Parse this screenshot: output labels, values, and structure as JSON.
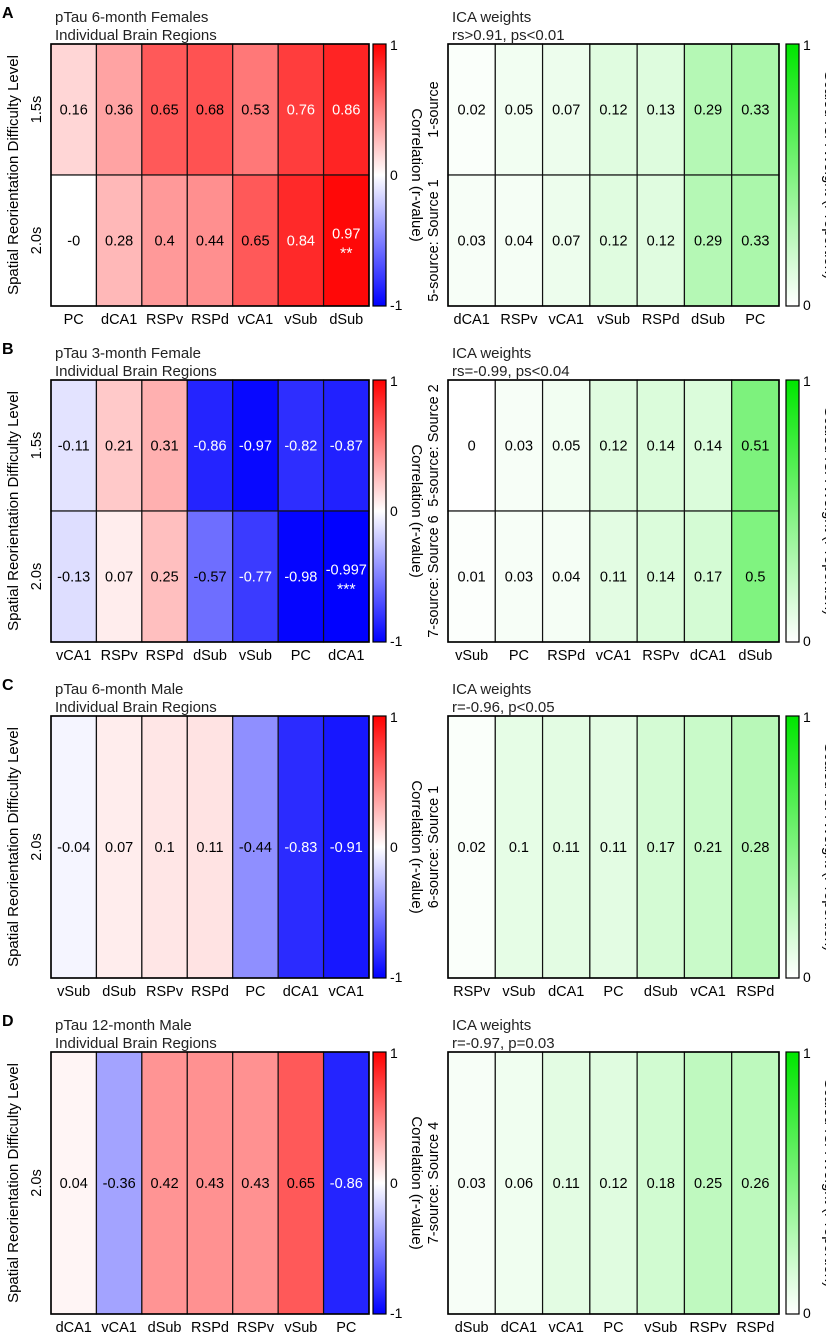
{
  "chart_data": [
    {
      "panel": "A",
      "type": "heatmap",
      "title": "pTau 6-month Females",
      "subtitle": "Individual Brain Regions",
      "ylabel": "Spatial Reorientation Difficulty Level",
      "rows": [
        "1.5s",
        "2.0s"
      ],
      "categories": [
        "PC",
        "dCA1",
        "RSPv",
        "RSPd",
        "vCA1",
        "vSub",
        "dSub"
      ],
      "values": [
        [
          0.16,
          0.36,
          0.65,
          0.68,
          0.53,
          0.76,
          0.86
        ],
        [
          -0.0,
          0.28,
          0.4,
          0.44,
          0.65,
          0.84,
          0.97
        ]
      ],
      "labels": [
        [
          "0.16",
          "0.36",
          "0.65",
          "0.68",
          "0.53",
          "0.76",
          "0.86"
        ],
        [
          "-0",
          "0.28",
          "0.4",
          "0.44",
          "0.65",
          "0.84",
          "0.97"
        ]
      ],
      "stars": [
        [
          "",
          "",
          "",
          "",
          "",
          "",
          ""
        ],
        [
          "",
          "",
          "",
          "",
          "",
          "",
          "**"
        ]
      ],
      "colorbar": {
        "label": "Correlation (r-value)",
        "max_label": "1",
        "mid_label": "0",
        "min_label": "-1",
        "range": [
          -1,
          1
        ]
      }
    },
    {
      "panel": "A",
      "type": "heatmap",
      "title": "ICA weights",
      "subtitle": "rs>0.91, ps<0.01",
      "rows": [
        "1-source",
        "5-source: Source 1"
      ],
      "categories": [
        "dCA1",
        "RSPv",
        "vCA1",
        "vSub",
        "RSPd",
        "dSub",
        "PC"
      ],
      "values": [
        [
          0.02,
          0.05,
          0.07,
          0.12,
          0.13,
          0.29,
          0.33
        ],
        [
          0.03,
          0.04,
          0.07,
          0.12,
          0.12,
          0.29,
          0.33
        ]
      ],
      "labels": [
        [
          "0.02",
          "0.05",
          "0.07",
          "0.12",
          "0.13",
          "0.29",
          "0.33"
        ],
        [
          "0.03",
          "0.04",
          "0.07",
          "0.12",
          "0.12",
          "0.29",
          "0.33"
        ]
      ],
      "colorbar": {
        "label": "Scaled ICA Weight (Proportion)",
        "max_label": "1",
        "min_label": "0",
        "range": [
          0,
          1
        ]
      }
    },
    {
      "panel": "B",
      "type": "heatmap",
      "title": "pTau 3-month Female",
      "subtitle": "Individual Brain Regions",
      "ylabel": "Spatial Reorientation Difficulty Level",
      "rows": [
        "1.5s",
        "2.0s"
      ],
      "categories": [
        "vCA1",
        "RSPv",
        "RSPd",
        "dSub",
        "vSub",
        "PC",
        "dCA1"
      ],
      "values": [
        [
          -0.11,
          0.21,
          0.31,
          -0.86,
          -0.97,
          -0.82,
          -0.87
        ],
        [
          -0.13,
          0.07,
          0.25,
          -0.57,
          -0.77,
          -0.98,
          -0.997
        ]
      ],
      "labels": [
        [
          "-0.11",
          "0.21",
          "0.31",
          "-0.86",
          "-0.97",
          "-0.82",
          "-0.87"
        ],
        [
          "-0.13",
          "0.07",
          "0.25",
          "-0.57",
          "-0.77",
          "-0.98",
          "-0.997"
        ]
      ],
      "stars": [
        [
          "",
          "",
          "",
          "",
          "",
          "",
          ""
        ],
        [
          "",
          "",
          "",
          "",
          "",
          "",
          "***"
        ]
      ],
      "colorbar": {
        "label": "Correlation (r-value)",
        "max_label": "1",
        "mid_label": "0",
        "min_label": "-1",
        "range": [
          -1,
          1
        ]
      }
    },
    {
      "panel": "B",
      "type": "heatmap",
      "title": "ICA weights",
      "subtitle": "rs=-0.99, ps<0.04",
      "rows": [
        "5-source: Source 2",
        "7-source: Source 6"
      ],
      "categories": [
        "vSub",
        "PC",
        "RSPd",
        "vCA1",
        "RSPv",
        "dCA1",
        "dSub"
      ],
      "values": [
        [
          0.0,
          0.03,
          0.05,
          0.12,
          0.14,
          0.14,
          0.51
        ],
        [
          0.01,
          0.03,
          0.04,
          0.11,
          0.14,
          0.17,
          0.5
        ]
      ],
      "labels": [
        [
          "0",
          "0.03",
          "0.05",
          "0.12",
          "0.14",
          "0.14",
          "0.51"
        ],
        [
          "0.01",
          "0.03",
          "0.04",
          "0.11",
          "0.14",
          "0.17",
          "0.5"
        ]
      ],
      "colorbar": {
        "label": "Scaled ICA Weight (Proportion)",
        "max_label": "1",
        "min_label": "0",
        "range": [
          0,
          1
        ]
      }
    },
    {
      "panel": "C",
      "type": "heatmap",
      "title": "pTau 6-month Male",
      "subtitle": "Individual Brain Regions",
      "ylabel": "Spatial Reorientation Difficulty Level",
      "rows": [
        "2.0s"
      ],
      "categories": [
        "vSub",
        "dSub",
        "RSPv",
        "RSPd",
        "PC",
        "dCA1",
        "vCA1"
      ],
      "values": [
        [
          -0.04,
          0.07,
          0.1,
          0.11,
          -0.44,
          -0.83,
          -0.91
        ]
      ],
      "labels": [
        [
          "-0.04",
          "0.07",
          "0.1",
          "0.11",
          "-0.44",
          "-0.83",
          "-0.91"
        ]
      ],
      "colorbar": {
        "label": "Correlation (r-value)",
        "max_label": "1",
        "mid_label": "0",
        "min_label": "-1",
        "range": [
          -1,
          1
        ]
      }
    },
    {
      "panel": "C",
      "type": "heatmap",
      "title": "ICA weights",
      "subtitle": "r=-0.96, p<0.05",
      "rows": [
        "6-source: Source 1"
      ],
      "categories": [
        "RSPv",
        "vSub",
        "dCA1",
        "PC",
        "dSub",
        "vCA1",
        "RSPd"
      ],
      "values": [
        [
          0.02,
          0.1,
          0.11,
          0.11,
          0.17,
          0.21,
          0.28
        ]
      ],
      "labels": [
        [
          "0.02",
          "0.1",
          "0.11",
          "0.11",
          "0.17",
          "0.21",
          "0.28"
        ]
      ],
      "colorbar": {
        "label": "Scaled ICA Weight (Proportion)",
        "max_label": "1",
        "min_label": "0",
        "range": [
          0,
          1
        ]
      }
    },
    {
      "panel": "D",
      "type": "heatmap",
      "title": "pTau 12-month Male",
      "subtitle": "Individual Brain Regions",
      "ylabel": "Spatial Reorientation Difficulty Level",
      "rows": [
        "2.0s"
      ],
      "categories": [
        "dCA1",
        "vCA1",
        "dSub",
        "RSPd",
        "RSPv",
        "vSub",
        "PC"
      ],
      "values": [
        [
          0.04,
          -0.36,
          0.42,
          0.43,
          0.43,
          0.65,
          -0.86
        ]
      ],
      "labels": [
        [
          "0.04",
          "-0.36",
          "0.42",
          "0.43",
          "0.43",
          "0.65",
          "-0.86"
        ]
      ],
      "colorbar": {
        "label": "Correlation (r-value)",
        "max_label": "1",
        "mid_label": "0",
        "min_label": "-1",
        "range": [
          -1,
          1
        ]
      }
    },
    {
      "panel": "D",
      "type": "heatmap",
      "title": "ICA weights",
      "subtitle": "r=-0.97, p=0.03",
      "rows": [
        "7-source: Source 4"
      ],
      "categories": [
        "dSub",
        "dCA1",
        "vCA1",
        "PC",
        "vSub",
        "RSPv",
        "RSPd"
      ],
      "values": [
        [
          0.03,
          0.06,
          0.11,
          0.12,
          0.18,
          0.25,
          0.26
        ]
      ],
      "labels": [
        [
          "0.03",
          "0.06",
          "0.11",
          "0.12",
          "0.18",
          "0.25",
          "0.26"
        ]
      ],
      "colorbar": {
        "label": "Scaled ICA Weight (Proportion)",
        "max_label": "1",
        "min_label": "0",
        "range": [
          0,
          1
        ]
      }
    }
  ],
  "colors": {
    "positive": "#ff0000",
    "negative": "#0000ff",
    "neutral": "#ffffff",
    "ica": "#00e600"
  }
}
